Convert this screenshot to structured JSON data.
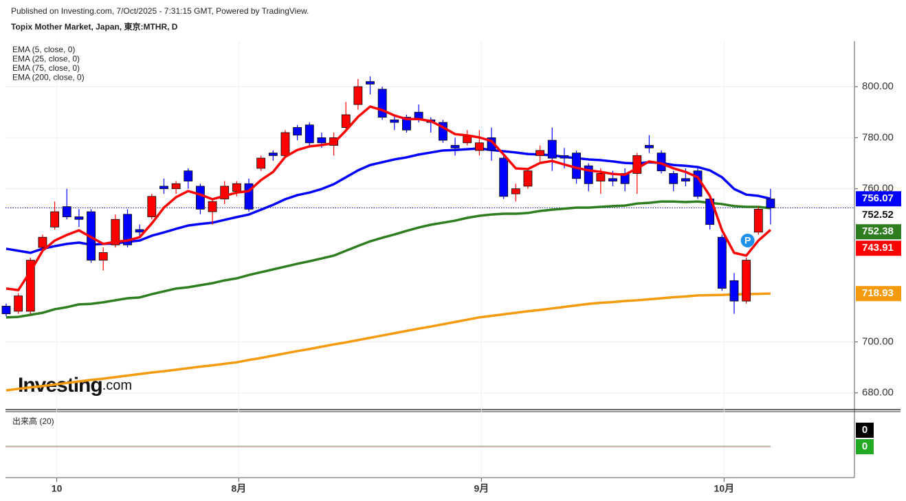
{
  "header": {
    "published": "Published on Investing.com, 7/Oct/2025 - 7:31:15 GMT, Powered by TradingView.",
    "symbol": "Topix Mother Market, Japan, 東京:MTHR, D"
  },
  "watermark": [
    "Investing",
    ".com"
  ],
  "chart_data": {
    "type": "candlestick",
    "categories": [
      null,
      null,
      null,
      null,
      "10",
      null,
      null,
      null,
      null,
      null,
      null,
      null,
      null,
      null,
      null,
      null,
      null,
      null,
      null,
      "8月",
      null,
      null,
      null,
      null,
      null,
      null,
      null,
      null,
      null,
      null,
      null,
      null,
      null,
      null,
      null,
      null,
      null,
      null,
      null,
      "9月",
      null,
      null,
      null,
      null,
      null,
      null,
      null,
      null,
      null,
      null,
      null,
      null,
      null,
      null,
      null,
      null,
      null,
      null,
      null,
      "10月",
      null,
      null,
      null,
      null
    ],
    "open": [
      714,
      712,
      712,
      737,
      745,
      753,
      749,
      751,
      732,
      738,
      750,
      744,
      749,
      761,
      760,
      767,
      761,
      751,
      756,
      759,
      762,
      768,
      774,
      773,
      784,
      785,
      780,
      777,
      784,
      793,
      802,
      799,
      787,
      788,
      790,
      787,
      786,
      777,
      778,
      775,
      780,
      772,
      758,
      761,
      773,
      779,
      773,
      774,
      769,
      763,
      764,
      766,
      766,
      777,
      774,
      766,
      764,
      767,
      756,
      741,
      724,
      716,
      743,
      756
    ],
    "high": [
      715,
      719,
      733,
      742,
      755,
      760,
      752,
      752,
      737,
      750,
      752,
      746,
      758,
      764,
      763,
      768,
      762,
      756,
      763,
      763,
      764,
      773,
      775,
      783,
      785,
      786,
      782,
      782,
      794,
      803,
      804,
      800,
      789,
      789,
      793,
      788,
      787,
      780,
      783,
      783,
      784,
      773,
      762,
      768,
      777,
      784,
      776,
      775,
      770,
      768,
      767,
      768,
      774,
      781,
      775,
      767,
      768,
      768,
      757,
      742,
      727,
      733,
      753,
      760
    ],
    "low": [
      710,
      711,
      711,
      735,
      744,
      748,
      745,
      731,
      728,
      737,
      737,
      741,
      748,
      758,
      758,
      760,
      750,
      746,
      754,
      757,
      751,
      767,
      771,
      772,
      779,
      777,
      776,
      773,
      783,
      791,
      797,
      787,
      783,
      782,
      786,
      782,
      778,
      773,
      777,
      773,
      771,
      756,
      755,
      760,
      770,
      767,
      768,
      762,
      759,
      758,
      761,
      759,
      758,
      774,
      766,
      759,
      761,
      756,
      744,
      720,
      711,
      715,
      742,
      746
    ],
    "close": [
      711,
      718,
      732,
      741,
      751,
      749,
      748,
      732,
      735,
      748,
      738,
      743,
      757,
      760,
      762,
      763,
      752,
      755,
      761,
      762,
      752,
      772,
      773,
      782,
      781,
      778,
      778,
      780,
      789,
      800,
      801,
      788,
      786,
      783,
      787,
      786,
      779,
      776,
      781,
      778,
      775,
      757,
      760,
      767,
      775,
      772,
      772,
      764,
      762,
      766,
      763,
      762,
      773,
      776,
      767,
      762,
      763,
      757,
      746,
      721,
      716,
      732,
      752,
      752.52
    ],
    "up_color": "#ff0000",
    "down_color": "#0000ff",
    "series": [
      {
        "name": "EMA (5, close, 0)",
        "color": "#ff0000",
        "values": [
          720.9,
          720.3,
          727.6,
          735.7,
          739.7,
          741.9,
          743.7,
          741.0,
          738.4,
          739.2,
          739.7,
          741.0,
          746.4,
          752.6,
          756.7,
          759.1,
          757.7,
          755.9,
          757.2,
          758.5,
          759.1,
          763.4,
          766.6,
          772.5,
          775.2,
          776.6,
          777.1,
          777.9,
          782.8,
          788.2,
          792.2,
          790.8,
          788.7,
          787.3,
          787.3,
          786.5,
          784.1,
          781.4,
          780.9,
          780.1,
          778.7,
          773.4,
          768.0,
          767.7,
          770.1,
          770.9,
          769.5,
          768.2,
          767.2,
          766.6,
          765.8,
          765.5,
          768.0,
          770.7,
          769.9,
          768.0,
          766.6,
          764.5,
          757.2,
          743.7,
          734.9,
          733.8,
          739.7,
          743.91
        ]
      },
      {
        "name": "EMA (25, close, 0)",
        "color": "#0000ff",
        "values": [
          736.5,
          735.7,
          734.9,
          736.5,
          737.5,
          738.4,
          738.9,
          738.1,
          738.4,
          738.6,
          739.2,
          739.7,
          741.6,
          742.9,
          744.3,
          745.6,
          746.2,
          746.7,
          747.8,
          748.9,
          749.9,
          751.8,
          753.7,
          755.9,
          757.5,
          758.5,
          759.9,
          761.8,
          764.5,
          767.2,
          769.3,
          770.4,
          771.5,
          772.3,
          773.4,
          774.2,
          775.0,
          775.2,
          775.5,
          775.8,
          775.2,
          774.7,
          774.2,
          773.6,
          773.4,
          773.1,
          772.5,
          772.0,
          771.5,
          771.2,
          770.7,
          770.1,
          769.9,
          770.4,
          770.1,
          769.3,
          769.0,
          768.5,
          767.2,
          764.5,
          759.9,
          757.7,
          757.2,
          756.07
        ]
      },
      {
        "name": "EMA (75, close, 0)",
        "color": "#2e7d1e",
        "values": [
          709.6,
          709.8,
          710.6,
          711.4,
          712.8,
          713.6,
          714.7,
          714.9,
          715.5,
          716.3,
          717.1,
          717.4,
          718.7,
          719.8,
          720.9,
          721.4,
          722.2,
          723.0,
          724.1,
          724.9,
          726.2,
          727.3,
          728.4,
          729.5,
          730.6,
          731.6,
          732.7,
          733.8,
          735.7,
          737.6,
          739.4,
          740.8,
          742.1,
          743.5,
          744.8,
          745.9,
          746.7,
          747.5,
          748.6,
          749.4,
          749.9,
          750.2,
          750.2,
          750.5,
          751.3,
          751.8,
          752.2,
          752.6,
          752.6,
          752.9,
          753.2,
          753.4,
          754.2,
          754.5,
          755.0,
          755.0,
          754.8,
          755.0,
          754.5,
          754.0,
          753.2,
          752.9,
          752.9,
          752.38
        ]
      },
      {
        "name": "EMA (200, close, 0)",
        "color": "#f59a0c",
        "values": [
          681.0,
          681.6,
          682.2,
          682.7,
          683.3,
          683.9,
          684.5,
          685.1,
          685.6,
          686.2,
          686.8,
          687.4,
          688.0,
          688.5,
          689.1,
          689.7,
          690.3,
          690.8,
          691.4,
          692.0,
          692.9,
          693.7,
          694.6,
          695.5,
          696.4,
          697.2,
          698.1,
          699.0,
          699.8,
          700.7,
          701.6,
          702.5,
          703.4,
          704.3,
          705.2,
          706.0,
          706.9,
          707.8,
          708.7,
          709.6,
          710.2,
          710.8,
          711.4,
          712.0,
          712.5,
          713.1,
          713.7,
          714.3,
          714.9,
          715.3,
          715.6,
          716.0,
          716.3,
          716.7,
          717.1,
          717.5,
          717.8,
          718.2,
          718.3,
          718.4,
          718.6,
          718.7,
          718.8,
          718.93
        ]
      }
    ],
    "annotation": "P",
    "ylim": [
      673.2,
      817.8
    ],
    "yticks": [
      {
        "value": 680,
        "label": "680.00"
      },
      {
        "value": 700,
        "label": "700.00"
      },
      {
        "value": 760,
        "label": "760.00"
      },
      {
        "value": 780,
        "label": "780.00"
      },
      {
        "value": 800,
        "label": "800.00"
      }
    ],
    "grid": true,
    "volume_panel": {
      "title": "出来高 (20)",
      "value": 0,
      "ma": 0,
      "ma_color": "#22aa22"
    }
  }
}
